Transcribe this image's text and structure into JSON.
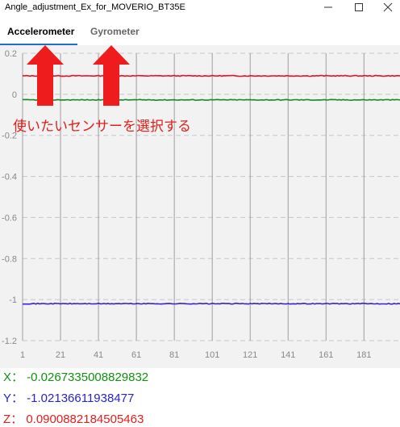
{
  "window": {
    "title": "Angle_adjustment_Ex_for_MOVERIO_BT35E"
  },
  "tabs": [
    {
      "label": "Accelerometer",
      "selected": true
    },
    {
      "label": "Gyrometer",
      "selected": false
    }
  ],
  "annotation": {
    "text": "使いたいセンサーを選択する",
    "color": "#e0201c"
  },
  "chart_data": {
    "type": "line",
    "x_ticks": [
      1,
      21,
      41,
      61,
      81,
      101,
      121,
      141,
      161,
      181
    ],
    "y_ticks": [
      "0.2",
      "0",
      "-0.2",
      "-0.4",
      "-0.6",
      "-0.8",
      "-1",
      "-1.2"
    ],
    "xlim": [
      1,
      200
    ],
    "ylim": [
      -1.2,
      0.2
    ],
    "grid": true,
    "series": [
      {
        "color": "#e81123",
        "approx_value": 0.09
      },
      {
        "color": "#138a1f",
        "approx_value": -0.027
      },
      {
        "color": "#3a1fd6",
        "approx_value": -1.02
      }
    ]
  },
  "readouts": {
    "x": "X： -0.0267335008829832",
    "y": "Y： -1.02136611938477",
    "z": "Z： 0.0900882184505463",
    "colors": {
      "x": "#10910f",
      "y": "#2a23c8",
      "z": "#e0201c"
    }
  }
}
